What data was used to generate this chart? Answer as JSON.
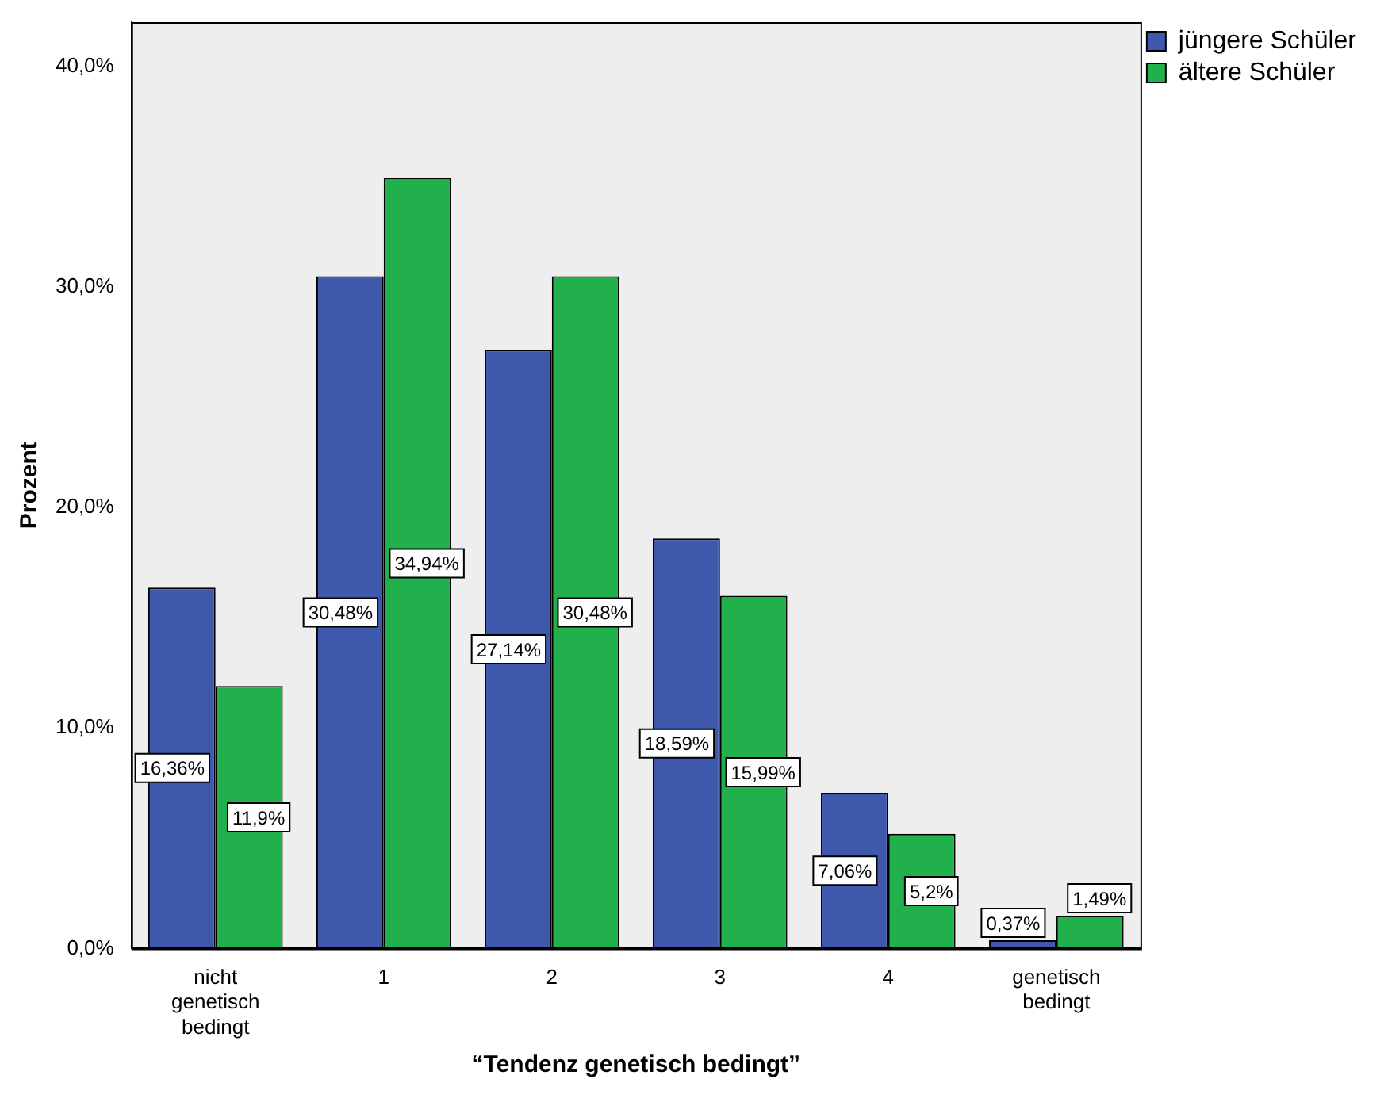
{
  "chart_data": {
    "type": "bar",
    "xlabel": "“Tendenz genetisch bedingt”",
    "ylabel": "Prozent",
    "categories": [
      "nicht genetisch bedingt",
      "1",
      "2",
      "3",
      "4",
      "genetisch bedingt"
    ],
    "series": [
      {
        "name": "jüngere Schüler",
        "color": "#3e58ac",
        "values": [
          16.36,
          30.48,
          27.14,
          18.59,
          7.06,
          0.37
        ],
        "value_labels": [
          "16,36%",
          "30,48%",
          "27,14%",
          "18,59%",
          "7,06%",
          "0,37%"
        ]
      },
      {
        "name": "ältere Schüler",
        "color": "#21b04b",
        "values": [
          11.9,
          34.94,
          30.48,
          15.99,
          5.2,
          1.49
        ],
        "value_labels": [
          "11,9%",
          "34,94%",
          "30,48%",
          "15,99%",
          "5,2%",
          "1,49%"
        ]
      }
    ],
    "ylim": [
      0,
      42
    ],
    "yticks": [
      {
        "value": 0,
        "label": "0,0%"
      },
      {
        "value": 10,
        "label": "10,0%"
      },
      {
        "value": 20,
        "label": "20,0%"
      },
      {
        "value": 30,
        "label": "30,0%"
      },
      {
        "value": 40,
        "label": "40,0%"
      }
    ],
    "grid": false,
    "legend": "top right"
  }
}
